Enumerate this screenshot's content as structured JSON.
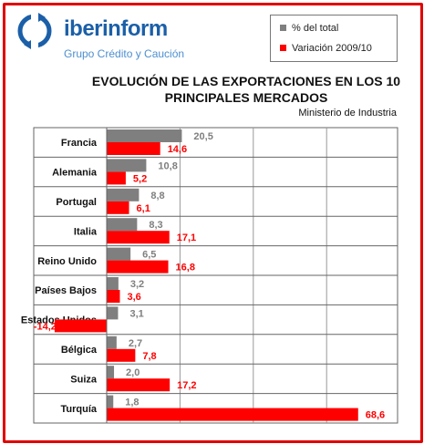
{
  "brand": {
    "name_part1": "iber",
    "name_part2": "inform",
    "tagline": "Grupo Crédito y Caución",
    "logo_icon": "circular-arrows-icon"
  },
  "colors": {
    "share": "#7f7f7f",
    "variation": "#ff0000",
    "frame": "#e00000",
    "brand_blue": "#1b5fa8"
  },
  "chart_data": {
    "type": "bar",
    "orientation": "horizontal",
    "title": "EVOLUCIÓN DE LAS EXPORTACIONES EN LOS 10 PRINCIPALES MERCADOS",
    "source": "Ministerio de Industria",
    "categories": [
      "Francia",
      "Alemania",
      "Portugal",
      "Italia",
      "Reino Unido",
      "Países Bajos",
      "Estados Unidos",
      "Bélgica",
      "Suiza",
      "Turquía"
    ],
    "series": [
      {
        "name": "% del total",
        "values": [
          "20,5",
          "10,8",
          "8,8",
          "8,3",
          "6,5",
          "3,2",
          "3,1",
          "2,7",
          "2,0",
          "1,8"
        ]
      },
      {
        "name": "Variación 2009/10",
        "values": [
          "14,6",
          "5,2",
          "6,1",
          "17,1",
          "16,8",
          "3,6",
          "-14,2",
          "7,8",
          "17,2",
          "68,6"
        ]
      }
    ],
    "xlim": [
      -10,
      70
    ],
    "grid": true,
    "legend": "top-right"
  }
}
